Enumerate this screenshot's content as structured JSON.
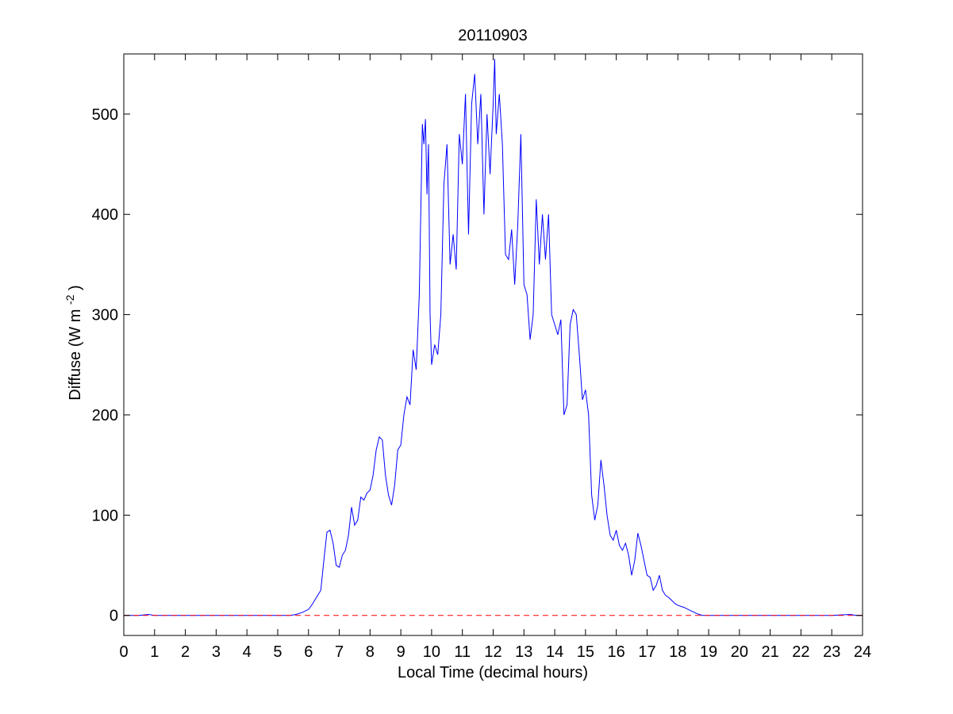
{
  "chart_data": {
    "type": "line",
    "title": "20110903",
    "xlabel": "Local Time (decimal hours)",
    "ylabel": {
      "prefix": "Diffuse (W m",
      "superscript": "-2",
      "suffix": ")"
    },
    "xlim": [
      0,
      24
    ],
    "ylim": [
      -20,
      560
    ],
    "x_ticks": [
      0,
      1,
      2,
      3,
      4,
      5,
      6,
      7,
      8,
      9,
      10,
      11,
      12,
      13,
      14,
      15,
      16,
      17,
      18,
      19,
      20,
      21,
      22,
      23,
      24
    ],
    "y_ticks": [
      0,
      100,
      200,
      300,
      400,
      500
    ],
    "grid": false,
    "series": [
      {
        "color": "#0000ff",
        "style": "solid",
        "x": [
          0,
          0.5,
          0.8,
          1.0,
          2.0,
          3.0,
          4.0,
          5.0,
          5.4,
          5.6,
          5.8,
          6.0,
          6.1,
          6.2,
          6.3,
          6.4,
          6.5,
          6.6,
          6.7,
          6.8,
          6.9,
          7.0,
          7.1,
          7.2,
          7.3,
          7.4,
          7.5,
          7.6,
          7.7,
          7.8,
          7.9,
          8.0,
          8.1,
          8.2,
          8.3,
          8.4,
          8.5,
          8.6,
          8.7,
          8.8,
          8.9,
          9.0,
          9.1,
          9.2,
          9.3,
          9.4,
          9.5,
          9.6,
          9.7,
          9.75,
          9.8,
          9.85,
          9.9,
          9.95,
          10.0,
          10.1,
          10.2,
          10.3,
          10.4,
          10.5,
          10.6,
          10.7,
          10.8,
          10.9,
          11.0,
          11.1,
          11.2,
          11.3,
          11.4,
          11.5,
          11.6,
          11.7,
          11.8,
          11.9,
          12.0,
          12.05,
          12.1,
          12.2,
          12.3,
          12.4,
          12.5,
          12.6,
          12.7,
          12.8,
          12.9,
          13.0,
          13.1,
          13.2,
          13.3,
          13.4,
          13.5,
          13.6,
          13.7,
          13.8,
          13.9,
          14.0,
          14.1,
          14.2,
          14.3,
          14.4,
          14.5,
          14.6,
          14.7,
          14.8,
          14.9,
          15.0,
          15.1,
          15.2,
          15.3,
          15.4,
          15.5,
          15.6,
          15.7,
          15.8,
          15.9,
          16.0,
          16.1,
          16.2,
          16.3,
          16.4,
          16.5,
          16.6,
          16.7,
          16.8,
          16.9,
          17.0,
          17.1,
          17.2,
          17.3,
          17.4,
          17.5,
          17.6,
          17.7,
          17.8,
          17.9,
          18.0,
          18.2,
          18.4,
          18.6,
          18.8,
          19.0,
          19.5,
          20.0,
          21.0,
          22.0,
          23.0,
          23.6,
          23.8,
          24.0
        ],
        "y": [
          0,
          0,
          1,
          0,
          0,
          0,
          0,
          0,
          0,
          1,
          3,
          6,
          10,
          15,
          20,
          25,
          55,
          83,
          85,
          72,
          50,
          48,
          60,
          65,
          80,
          108,
          90,
          95,
          118,
          115,
          122,
          125,
          140,
          165,
          178,
          175,
          140,
          120,
          110,
          130,
          165,
          170,
          200,
          218,
          210,
          265,
          245,
          320,
          490,
          470,
          495,
          420,
          470,
          300,
          250,
          270,
          260,
          300,
          430,
          470,
          350,
          380,
          345,
          480,
          450,
          520,
          380,
          510,
          540,
          470,
          520,
          400,
          500,
          440,
          510,
          555,
          480,
          520,
          470,
          360,
          355,
          385,
          330,
          390,
          480,
          330,
          320,
          275,
          300,
          415,
          350,
          400,
          355,
          400,
          300,
          290,
          280,
          295,
          200,
          210,
          290,
          305,
          300,
          260,
          215,
          225,
          200,
          120,
          95,
          110,
          155,
          130,
          100,
          80,
          75,
          85,
          70,
          65,
          72,
          60,
          40,
          55,
          82,
          70,
          55,
          40,
          38,
          25,
          30,
          40,
          25,
          20,
          18,
          15,
          12,
          10,
          8,
          5,
          2,
          0,
          0,
          0,
          0,
          0,
          0,
          0,
          1,
          0,
          0
        ]
      },
      {
        "color": "#ff0000",
        "style": "dashed",
        "x": [
          0,
          24
        ],
        "y": [
          0,
          0
        ]
      }
    ]
  }
}
